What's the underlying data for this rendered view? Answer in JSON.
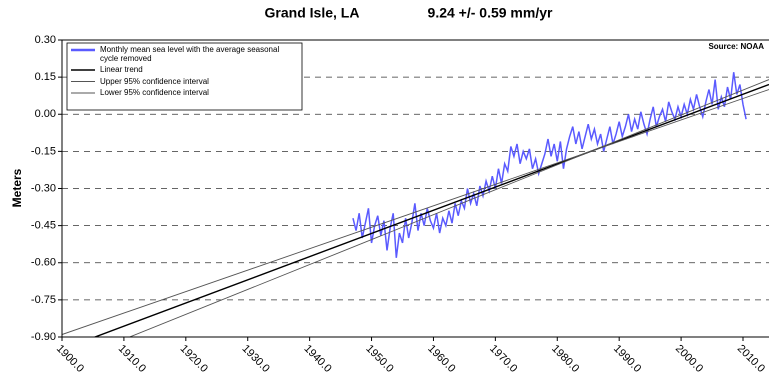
{
  "chart_data": {
    "type": "line",
    "title": "Grand Isle, LA",
    "subtitle": "9.24 +/- 0.59 mm/yr",
    "source": "Source: NOAA",
    "y_label": "Meters",
    "xlim": [
      1900,
      2014.2
    ],
    "ylim": [
      -0.9,
      0.3
    ],
    "xticks": [
      {
        "value": 1900,
        "label": "1900.0"
      },
      {
        "value": 1910,
        "label": "1910.0"
      },
      {
        "value": 1920,
        "label": "1920.0"
      },
      {
        "value": 1930,
        "label": "1930.0"
      },
      {
        "value": 1940,
        "label": "1940.0"
      },
      {
        "value": 1950,
        "label": "1950.0"
      },
      {
        "value": 1960,
        "label": "1960.0"
      },
      {
        "value": 1970,
        "label": "1970.0"
      },
      {
        "value": 1980,
        "label": "1980.0"
      },
      {
        "value": 1990,
        "label": "1990.0"
      },
      {
        "value": 2000,
        "label": "2000.0"
      },
      {
        "value": 2010,
        "label": "2010.0"
      }
    ],
    "yticks": [
      {
        "value": 0.3,
        "label": "0.30"
      },
      {
        "value": 0.15,
        "label": "0.15"
      },
      {
        "value": 0,
        "label": "0.00"
      },
      {
        "value": -0.15,
        "label": "-0.15"
      },
      {
        "value": -0.3,
        "label": "-0.30"
      },
      {
        "value": -0.45,
        "label": "-0.45"
      },
      {
        "value": -0.6,
        "label": "-0.60"
      },
      {
        "value": -0.75,
        "label": "-0.75"
      },
      {
        "value": -0.9,
        "label": "-0.90"
      }
    ],
    "grid": true,
    "legend": "top-left",
    "series": [
      {
        "name": "Monthly mean sea level with the average seasonal cycle removed",
        "color": "#5a5aff",
        "width": 1.5,
        "x": [
          1947,
          1947.5,
          1948,
          1948.5,
          1949,
          1949.5,
          1950,
          1950.5,
          1951,
          1951.5,
          1952,
          1952.5,
          1953,
          1953.5,
          1954,
          1954.5,
          1955,
          1955.5,
          1956,
          1956.5,
          1957,
          1957.5,
          1958,
          1958.5,
          1959,
          1959.5,
          1960,
          1960.5,
          1961,
          1961.5,
          1962,
          1962.5,
          1963,
          1963.5,
          1964,
          1964.5,
          1965,
          1965.5,
          1966,
          1966.5,
          1967,
          1967.5,
          1968,
          1968.5,
          1969,
          1969.5,
          1970,
          1970.5,
          1971,
          1971.5,
          1972,
          1972.5,
          1973,
          1973.5,
          1974,
          1974.5,
          1975,
          1975.5,
          1976,
          1976.5,
          1977,
          1977.5,
          1978,
          1978.5,
          1979,
          1979.5,
          1980,
          1980.5,
          1981,
          1981.5,
          1982,
          1982.5,
          1983,
          1983.5,
          1984,
          1984.5,
          1985,
          1985.5,
          1986,
          1986.5,
          1987,
          1987.5,
          1988,
          1988.5,
          1989,
          1989.5,
          1990,
          1990.5,
          1991,
          1991.5,
          1992,
          1992.5,
          1993,
          1993.5,
          1994,
          1994.5,
          1995,
          1995.5,
          1996,
          1996.5,
          1997,
          1997.5,
          1998,
          1998.5,
          1999,
          1999.5,
          2000,
          2000.5,
          2001,
          2001.5,
          2002,
          2002.5,
          2003,
          2003.5,
          2004,
          2004.5,
          2005,
          2005.5,
          2006,
          2006.5,
          2007,
          2007.5,
          2008,
          2008.5,
          2009,
          2009.5,
          2010,
          2010.5
        ],
        "values": [
          -0.42,
          -0.47,
          -0.4,
          -0.5,
          -0.44,
          -0.38,
          -0.52,
          -0.45,
          -0.41,
          -0.49,
          -0.43,
          -0.55,
          -0.46,
          -0.4,
          -0.58,
          -0.48,
          -0.52,
          -0.42,
          -0.5,
          -0.44,
          -0.36,
          -0.47,
          -0.4,
          -0.45,
          -0.38,
          -0.43,
          -0.46,
          -0.4,
          -0.48,
          -0.42,
          -0.45,
          -0.39,
          -0.44,
          -0.36,
          -0.41,
          -0.35,
          -0.38,
          -0.3,
          -0.36,
          -0.32,
          -0.37,
          -0.29,
          -0.33,
          -0.27,
          -0.31,
          -0.25,
          -0.3,
          -0.22,
          -0.28,
          -0.2,
          -0.23,
          -0.13,
          -0.17,
          -0.12,
          -0.2,
          -0.15,
          -0.18,
          -0.14,
          -0.22,
          -0.18,
          -0.24,
          -0.2,
          -0.16,
          -0.1,
          -0.17,
          -0.12,
          -0.19,
          -0.11,
          -0.22,
          -0.14,
          -0.09,
          -0.05,
          -0.12,
          -0.07,
          -0.14,
          -0.09,
          -0.04,
          -0.1,
          -0.06,
          -0.12,
          -0.08,
          -0.15,
          -0.1,
          -0.05,
          -0.12,
          -0.08,
          -0.03,
          -0.09,
          -0.05,
          0.0,
          -0.07,
          -0.02,
          -0.06,
          0.01,
          -0.04,
          -0.08,
          -0.02,
          0.03,
          -0.05,
          -0.01,
          0.02,
          -0.03,
          0.05,
          0.01,
          -0.02,
          0.03,
          -0.01,
          0.04,
          0.0,
          0.06,
          0.02,
          0.08,
          0.03,
          -0.01,
          0.05,
          0.1,
          0.04,
          0.14,
          0.02,
          0.07,
          0.03,
          0.11,
          0.06,
          0.17,
          0.08,
          0.12,
          0.04,
          -0.02
        ]
      },
      {
        "name": "Linear trend",
        "color": "#000000",
        "width": 1.4,
        "x": [
          1900,
          2014.2
        ],
        "values": [
          -0.95,
          0.12
        ]
      },
      {
        "name": "Upper 95% confidence interval",
        "color": "#555555",
        "width": 0.9,
        "x": [
          1900,
          2014.2
        ],
        "values": [
          -1.01,
          0.14
        ]
      },
      {
        "name": "Lower 95% confidence interval",
        "color": "#555555",
        "width": 0.9,
        "x": [
          1900,
          2014.2
        ],
        "values": [
          -0.89,
          0.1
        ]
      }
    ]
  }
}
